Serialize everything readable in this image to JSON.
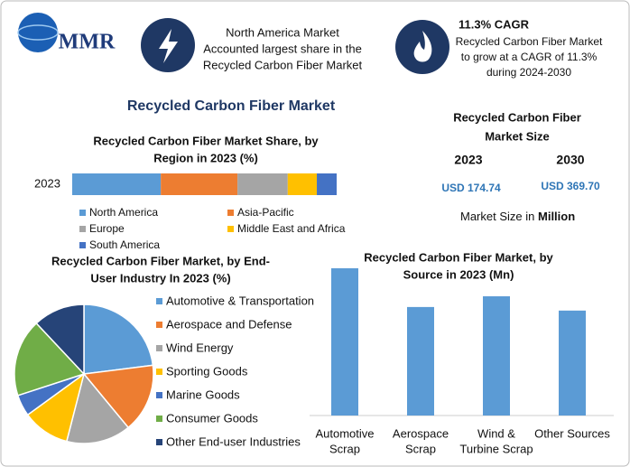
{
  "header": {
    "logo": "MMR",
    "highlight1": {
      "lines": [
        "North America Market",
        "Accounted largest share in the",
        "Recycled Carbon Fiber Market"
      ]
    },
    "highlight2": {
      "title": "11.3% CAGR",
      "lines": [
        "Recycled Carbon Fiber Market",
        "to grow at a CAGR of 11.3%",
        "during 2024-2030"
      ]
    }
  },
  "title": "Recycled Carbon Fiber Market",
  "market_size": {
    "title_lines": [
      "Recycled Carbon Fiber",
      "Market Size"
    ],
    "years": [
      "2023",
      "2030"
    ],
    "values": [
      "USD 174.74",
      "USD 369.70"
    ],
    "note": "Market Size in",
    "unit": "Million"
  },
  "chart_data": [
    {
      "type": "stacked_bar",
      "title_lines": [
        "Recycled Carbon Fiber Market Share, by",
        "Region in 2023 (%)"
      ],
      "categories": [
        "2023"
      ],
      "series": [
        {
          "name": "North America",
          "color": "#5b9bd5",
          "values": [
            33.5
          ]
        },
        {
          "name": "Asia-Pacific",
          "color": "#ed7d31",
          "values": [
            29
          ]
        },
        {
          "name": "Europe",
          "color": "#a5a5a5",
          "values": [
            19
          ]
        },
        {
          "name": "Middle East and Africa",
          "color": "#ffc000",
          "values": [
            11
          ]
        },
        {
          "name": "South America",
          "color": "#4472c4",
          "values": [
            7.5
          ]
        }
      ]
    },
    {
      "type": "pie",
      "title_lines": [
        "Recycled Carbon Fiber Market, by End-",
        "User Industry In 2023 (%)"
      ],
      "categories": [
        "Automotive & Transportation",
        "Aerospace and Defense",
        "Wind Energy",
        "Sporting Goods",
        "Marine Goods",
        "Consumer Goods",
        "Other End-user Industries"
      ],
      "values": [
        23,
        16,
        15,
        11,
        5,
        18,
        12
      ],
      "colors": [
        "#5b9bd5",
        "#ed7d31",
        "#a5a5a5",
        "#ffc000",
        "#4472c4",
        "#70ad47",
        "#264478"
      ]
    },
    {
      "type": "bar",
      "title_lines": [
        "Recycled Carbon Fiber Market, by",
        "Source in 2023 (Mn)"
      ],
      "categories": [
        [
          "Automotive",
          "Scrap"
        ],
        [
          "Aerospace",
          "Scrap"
        ],
        [
          "Wind &",
          "Turbine Scrap"
        ],
        [
          "Other Sources"
        ]
      ],
      "values": [
        53.6,
        39.5,
        43.4,
        38.2
      ],
      "color": "#5b9bd5"
    }
  ]
}
